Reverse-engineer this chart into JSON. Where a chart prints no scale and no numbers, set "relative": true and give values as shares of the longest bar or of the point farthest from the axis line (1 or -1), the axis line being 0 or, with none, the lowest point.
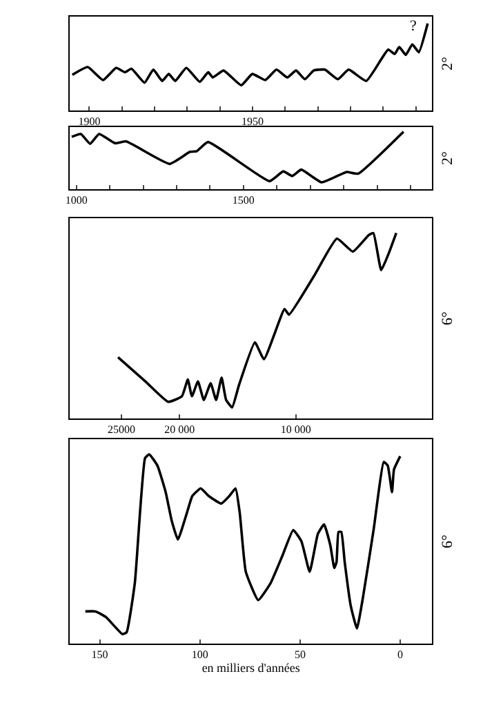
{
  "chart_data": [
    {
      "type": "line",
      "relative": true,
      "color": "#000000",
      "ylabel": "2°",
      "xlim": [
        1894,
        2005
      ],
      "xticks": [
        1900,
        {
          "value": 1910,
          "label": null
        },
        {
          "value": 1920,
          "label": null
        },
        {
          "value": 1930,
          "label": null
        },
        {
          "value": 1940,
          "label": null
        },
        1950,
        {
          "value": 1960,
          "label": null
        },
        {
          "value": 1970,
          "label": null
        },
        {
          "value": 1980,
          "label": null
        },
        {
          "value": 1990,
          "label": null
        },
        {
          "value": 2000,
          "label": null
        }
      ],
      "x": [
        1894.8,
        1899.5,
        1904.2,
        1908.2,
        1910.9,
        1912.9,
        1916.9,
        1919.6,
        1922.3,
        1924.3,
        1926.3,
        1929.7,
        1933.8,
        1936.4,
        1937.8,
        1941.1,
        1946.5,
        1949.9,
        1953.9,
        1957.3,
        1960.6,
        1963.3,
        1966.0,
        1968.7,
        1972.1,
        1976.1,
        1979.4,
        1984.8,
        1991.5,
        1993.5,
        1994.9,
        1996.9,
        1998.9,
        2000.9,
        2003.6
      ],
      "values": [
        0.41,
        0.5,
        0.35,
        0.49,
        0.44,
        0.48,
        0.32,
        0.47,
        0.34,
        0.42,
        0.34,
        0.49,
        0.33,
        0.44,
        0.38,
        0.46,
        0.29,
        0.42,
        0.35,
        0.47,
        0.38,
        0.46,
        0.36,
        0.46,
        0.47,
        0.36,
        0.47,
        0.34,
        0.7,
        0.65,
        0.73,
        0.64,
        0.76,
        0.67,
        1.0
      ],
      "annotations": [
        {
          "text": "?",
          "x": 2003.6,
          "y": 1.0
        }
      ]
    },
    {
      "type": "line",
      "relative": true,
      "color": "#000000",
      "ylabel": "2°",
      "xlim": [
        980,
        2065
      ],
      "xticks": [
        1000,
        {
          "value": 1100,
          "label": null
        },
        {
          "value": 1200,
          "label": null
        },
        {
          "value": 1300,
          "label": null
        },
        {
          "value": 1400,
          "label": null
        },
        1500,
        {
          "value": 1600,
          "label": null
        },
        {
          "value": 1700,
          "label": null
        },
        {
          "value": 1800,
          "label": null
        },
        {
          "value": 1900,
          "label": null
        },
        {
          "value": 2000,
          "label": null
        }
      ],
      "x": [
        986,
        1013,
        1041,
        1068,
        1115,
        1149,
        1279,
        1340,
        1360,
        1394,
        1578,
        1619,
        1646,
        1673,
        1734,
        1809,
        1843,
        1979
      ],
      "values": [
        0.91,
        0.96,
        0.79,
        0.96,
        0.8,
        0.83,
        0.44,
        0.65,
        0.66,
        0.82,
        0.14,
        0.31,
        0.23,
        0.34,
        0.12,
        0.3,
        0.27,
        1.0
      ]
    },
    {
      "type": "line",
      "relative": true,
      "color": "#000000",
      "ylabel": "6°",
      "xlim": [
        29450,
        -1730
      ],
      "xticks": [
        {
          "value": 25000,
          "label": "25000"
        },
        {
          "value": 20000,
          "label": "20 000"
        },
        {
          "value": 10000,
          "label": "10 000"
        }
      ],
      "x": [
        25294,
        22941,
        20976,
        19800,
        19294,
        18941,
        18424,
        17918,
        17329,
        16859,
        16388,
        16000,
        15482,
        14894,
        13529,
        12741,
        10976,
        10588,
        8424,
        6471,
        5094,
        3718,
        3329,
        2659,
        1953,
        1365
      ],
      "values": [
        0.33,
        0.2,
        0.09,
        0.12,
        0.21,
        0.12,
        0.2,
        0.1,
        0.19,
        0.1,
        0.22,
        0.1,
        0.06,
        0.18,
        0.41,
        0.32,
        0.59,
        0.56,
        0.77,
        0.97,
        0.9,
        0.99,
        1.0,
        0.8,
        0.9,
        1.0
      ]
    },
    {
      "type": "line",
      "relative": true,
      "color": "#000000",
      "ylabel": "6°",
      "xlabel": "en milliers d'années",
      "xlim": [
        165,
        -16
      ],
      "xticks": [
        150,
        100,
        50,
        0
      ],
      "x": [
        157.2,
        152.1,
        146.9,
        138.7,
        136.6,
        132.5,
        127.4,
        125.3,
        121.2,
        117.1,
        114.1,
        111.0,
        106.8,
        103.8,
        99.6,
        95.6,
        89.4,
        85.3,
        82.2,
        80.1,
        77.1,
        70.9,
        64.7,
        58.6,
        53.4,
        49.3,
        45.2,
        41.1,
        38.0,
        34.9,
        32.9,
        31.8,
        30.8,
        29.4,
        27.7,
        24.7,
        21.6,
        18.5,
        13.3,
        8.2,
        6.2,
        4.1,
        3.1,
        0
      ],
      "values": [
        0.17,
        0.17,
        0.14,
        0.05,
        0.06,
        0.32,
        0.98,
        1.0,
        0.94,
        0.8,
        0.65,
        0.55,
        0.68,
        0.78,
        0.82,
        0.78,
        0.74,
        0.78,
        0.82,
        0.69,
        0.38,
        0.23,
        0.32,
        0.47,
        0.6,
        0.54,
        0.38,
        0.58,
        0.63,
        0.52,
        0.4,
        0.43,
        0.59,
        0.59,
        0.43,
        0.2,
        0.08,
        0.25,
        0.6,
        0.96,
        0.94,
        0.8,
        0.92,
        0.99
      ]
    }
  ]
}
